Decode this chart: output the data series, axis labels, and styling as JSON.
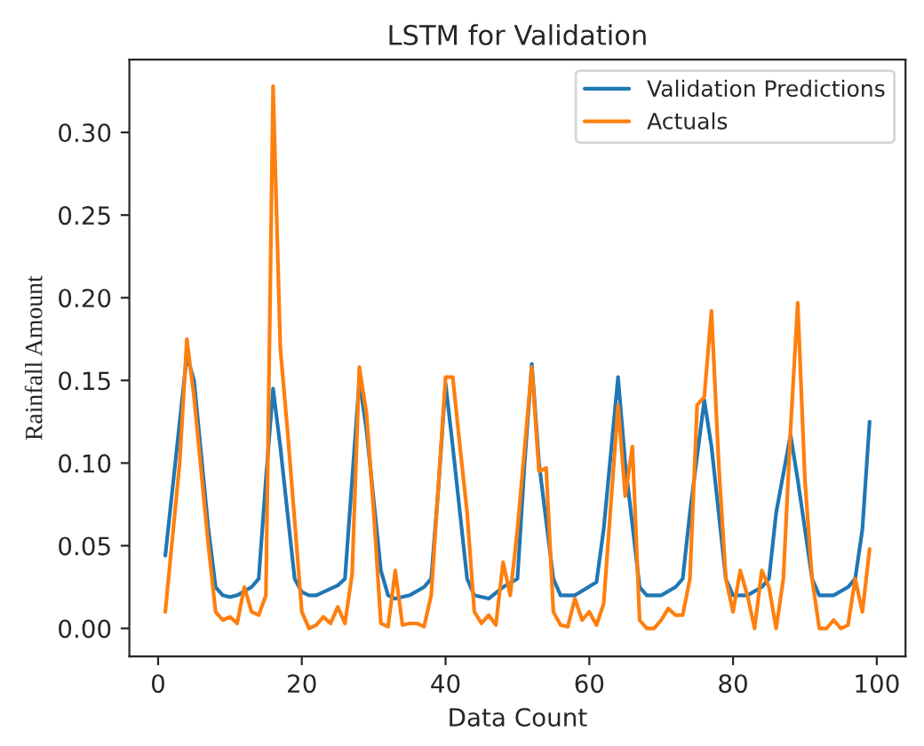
{
  "chart_data": {
    "type": "line",
    "title": "LSTM for Validation",
    "xlabel": "Data Count",
    "ylabel": "Rainfall Amount",
    "xlim": [
      -4,
      104
    ],
    "ylim": [
      -0.017,
      0.344
    ],
    "xticks": [
      0,
      20,
      40,
      60,
      80,
      100
    ],
    "yticks": [
      {
        "value": 0,
        "label": "0.00"
      },
      {
        "value": 0.05,
        "label": "0.05"
      },
      {
        "value": 0.1,
        "label": "0.10"
      },
      {
        "value": 0.15,
        "label": "0.15"
      },
      {
        "value": 0.2,
        "label": "0.20"
      },
      {
        "value": 0.25,
        "label": "0.25"
      },
      {
        "value": 0.3,
        "label": "0.30"
      }
    ],
    "legend": "top right",
    "grid": false,
    "series": [
      {
        "name": "Validation Predictions",
        "color": "#1f77b4",
        "x": [
          1,
          4,
          5,
          7,
          8,
          9,
          10,
          11,
          13,
          14,
          15,
          16,
          17,
          19,
          20,
          21,
          22,
          25,
          26,
          27,
          28,
          29,
          31,
          32,
          33,
          35,
          37,
          38,
          39,
          40,
          41,
          43,
          44,
          46,
          48,
          50,
          51,
          52,
          53,
          55,
          56,
          58,
          61,
          62,
          64,
          65,
          67,
          68,
          70,
          72,
          73,
          74,
          76,
          77,
          79,
          80,
          82,
          84,
          85,
          86,
          88,
          89,
          91,
          92,
          94,
          96,
          97,
          98,
          99
        ],
        "values": [
          0.044,
          0.165,
          0.15,
          0.06,
          0.025,
          0.02,
          0.019,
          0.02,
          0.025,
          0.03,
          0.09,
          0.145,
          0.11,
          0.03,
          0.022,
          0.02,
          0.02,
          0.026,
          0.03,
          0.09,
          0.15,
          0.12,
          0.035,
          0.02,
          0.018,
          0.02,
          0.025,
          0.03,
          0.085,
          0.148,
          0.11,
          0.03,
          0.02,
          0.018,
          0.025,
          0.03,
          0.1,
          0.16,
          0.1,
          0.03,
          0.02,
          0.02,
          0.028,
          0.06,
          0.152,
          0.1,
          0.025,
          0.02,
          0.02,
          0.025,
          0.03,
          0.07,
          0.138,
          0.11,
          0.03,
          0.02,
          0.02,
          0.025,
          0.03,
          0.07,
          0.117,
          0.09,
          0.03,
          0.02,
          0.02,
          0.025,
          0.03,
          0.06,
          0.125
        ]
      },
      {
        "name": "Actuals",
        "color": "#ff7f0e",
        "x": [
          1,
          3,
          4,
          5,
          7,
          8,
          9,
          10,
          11,
          12,
          13,
          14,
          15,
          16,
          17,
          18,
          20,
          21,
          22,
          23,
          24,
          25,
          26,
          27,
          28,
          29,
          30,
          31,
          32,
          33,
          34,
          35,
          36,
          37,
          38,
          40,
          41,
          42,
          43,
          44,
          45,
          46,
          47,
          48,
          49,
          50,
          52,
          53,
          54,
          55,
          56,
          57,
          58,
          59,
          60,
          61,
          62,
          64,
          65,
          66,
          67,
          68,
          69,
          70,
          71,
          72,
          73,
          74,
          75,
          76,
          77,
          78,
          79,
          80,
          81,
          82,
          83,
          84,
          85,
          86,
          87,
          88,
          89,
          90,
          91,
          92,
          93,
          94,
          95,
          96,
          97,
          98,
          99
        ],
        "values": [
          0.01,
          0.1,
          0.175,
          0.14,
          0.05,
          0.01,
          0.005,
          0.007,
          0.003,
          0.025,
          0.01,
          0.008,
          0.02,
          0.328,
          0.17,
          0.12,
          0.01,
          0.0,
          0.002,
          0.007,
          0.003,
          0.013,
          0.003,
          0.033,
          0.158,
          0.13,
          0.07,
          0.003,
          0.001,
          0.035,
          0.002,
          0.003,
          0.003,
          0.001,
          0.02,
          0.152,
          0.152,
          0.11,
          0.07,
          0.01,
          0.003,
          0.008,
          0.002,
          0.04,
          0.02,
          0.06,
          0.158,
          0.095,
          0.097,
          0.01,
          0.002,
          0.001,
          0.018,
          0.005,
          0.01,
          0.002,
          0.015,
          0.135,
          0.08,
          0.11,
          0.005,
          0.0,
          0.0,
          0.005,
          0.012,
          0.008,
          0.008,
          0.03,
          0.135,
          0.14,
          0.192,
          0.1,
          0.03,
          0.01,
          0.035,
          0.02,
          0.0,
          0.035,
          0.025,
          0.0,
          0.03,
          0.12,
          0.197,
          0.09,
          0.03,
          0.0,
          0.0,
          0.005,
          0.0,
          0.002,
          0.03,
          0.01,
          0.048
        ]
      }
    ]
  }
}
